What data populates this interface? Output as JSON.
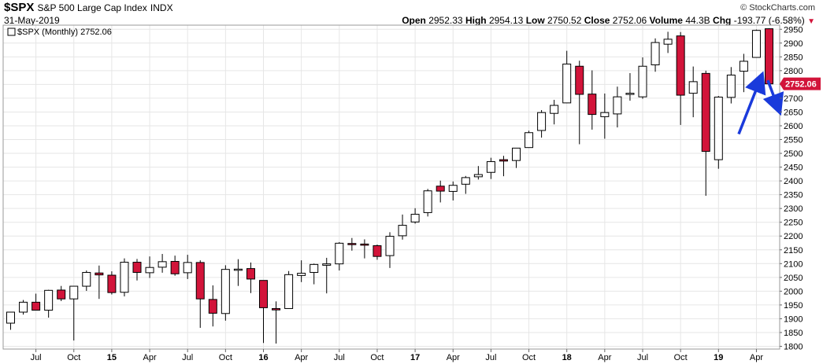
{
  "header": {
    "symbol": "$SPX",
    "name": "S&P 500 Large Cap Index",
    "exchange": "INDX",
    "date": "31-May-2019",
    "brand": "© StockCharts.com",
    "stats": {
      "open_label": "Open",
      "open": "2952.33",
      "high_label": "High",
      "high": "2954.13",
      "low_label": "Low",
      "low": "2750.52",
      "close_label": "Close",
      "close": "2752.06",
      "volume_label": "Volume",
      "volume": "44.3B",
      "chg_label": "Chg",
      "chg": "-193.77 (-6.58%)"
    }
  },
  "legend": {
    "label": "$SPX (Monthly) 2752.06"
  },
  "colors": {
    "up_fill": "#ffffff",
    "down_fill": "#d2143a",
    "outline": "#000000",
    "grid": "#e6e6e6",
    "arrow": "#1a3adb",
    "price_tag": "#d2143a"
  },
  "chart_data": {
    "type": "candlestick",
    "title": "$SPX (Monthly) 2752.06",
    "ylim": [
      1790,
      2965
    ],
    "y_ticks": [
      1800,
      1850,
      1900,
      1950,
      2000,
      2050,
      2100,
      2150,
      2200,
      2250,
      2300,
      2350,
      2400,
      2450,
      2500,
      2550,
      2600,
      2650,
      2700,
      2750,
      2800,
      2850,
      2900,
      2950
    ],
    "last_price": 2752.06,
    "x_ticks": [
      {
        "label": "Jul",
        "index": 2,
        "bold": false
      },
      {
        "label": "Oct",
        "index": 5,
        "bold": false
      },
      {
        "label": "15",
        "index": 8,
        "bold": true
      },
      {
        "label": "Apr",
        "index": 11,
        "bold": false
      },
      {
        "label": "Jul",
        "index": 14,
        "bold": false
      },
      {
        "label": "Oct",
        "index": 17,
        "bold": false
      },
      {
        "label": "16",
        "index": 20,
        "bold": true
      },
      {
        "label": "Apr",
        "index": 23,
        "bold": false
      },
      {
        "label": "Jul",
        "index": 26,
        "bold": false
      },
      {
        "label": "Oct",
        "index": 29,
        "bold": false
      },
      {
        "label": "17",
        "index": 32,
        "bold": true
      },
      {
        "label": "Apr",
        "index": 35,
        "bold": false
      },
      {
        "label": "Jul",
        "index": 38,
        "bold": false
      },
      {
        "label": "Oct",
        "index": 41,
        "bold": false
      },
      {
        "label": "18",
        "index": 44,
        "bold": true
      },
      {
        "label": "Apr",
        "index": 47,
        "bold": false
      },
      {
        "label": "Jul",
        "index": 50,
        "bold": false
      },
      {
        "label": "Oct",
        "index": 53,
        "bold": false
      },
      {
        "label": "19",
        "index": 56,
        "bold": true
      },
      {
        "label": "Apr",
        "index": 59,
        "bold": false
      }
    ],
    "candles": [
      {
        "m": "2014-05",
        "o": 1884,
        "h": 1924,
        "l": 1860,
        "c": 1924
      },
      {
        "m": "2014-06",
        "o": 1924,
        "h": 1968,
        "l": 1915,
        "c": 1960
      },
      {
        "m": "2014-07",
        "o": 1960,
        "h": 1991,
        "l": 1930,
        "c": 1931
      },
      {
        "m": "2014-08",
        "o": 1931,
        "h": 2005,
        "l": 1904,
        "c": 2003
      },
      {
        "m": "2014-09",
        "o": 2004,
        "h": 2019,
        "l": 1964,
        "c": 1972
      },
      {
        "m": "2014-10",
        "o": 1972,
        "h": 2018,
        "l": 1821,
        "c": 2018
      },
      {
        "m": "2014-11",
        "o": 2018,
        "h": 2075,
        "l": 2001,
        "c": 2068
      },
      {
        "m": "2014-12",
        "o": 2066,
        "h": 2093,
        "l": 1972,
        "c": 2059
      },
      {
        "m": "2015-01",
        "o": 2058,
        "h": 2072,
        "l": 1988,
        "c": 1995
      },
      {
        "m": "2015-02",
        "o": 1996,
        "h": 2119,
        "l": 1981,
        "c": 2105
      },
      {
        "m": "2015-03",
        "o": 2105,
        "h": 2117,
        "l": 2039,
        "c": 2068
      },
      {
        "m": "2015-04",
        "o": 2067,
        "h": 2126,
        "l": 2048,
        "c": 2086
      },
      {
        "m": "2015-05",
        "o": 2087,
        "h": 2135,
        "l": 2067,
        "c": 2107
      },
      {
        "m": "2015-06",
        "o": 2108,
        "h": 2129,
        "l": 2056,
        "c": 2063
      },
      {
        "m": "2015-07",
        "o": 2067,
        "h": 2132,
        "l": 2044,
        "c": 2104
      },
      {
        "m": "2015-08",
        "o": 2104,
        "h": 2112,
        "l": 1867,
        "c": 1972
      },
      {
        "m": "2015-09",
        "o": 1970,
        "h": 2021,
        "l": 1872,
        "c": 1920
      },
      {
        "m": "2015-10",
        "o": 1919,
        "h": 2094,
        "l": 1893,
        "c": 2079
      },
      {
        "m": "2015-11",
        "o": 2080,
        "h": 2116,
        "l": 2019,
        "c": 2080
      },
      {
        "m": "2015-12",
        "o": 2082,
        "h": 2104,
        "l": 1993,
        "c": 2044
      },
      {
        "m": "2016-01",
        "o": 2039,
        "h": 2039,
        "l": 1812,
        "c": 1940
      },
      {
        "m": "2016-02",
        "o": 1937,
        "h": 1963,
        "l": 1810,
        "c": 1932
      },
      {
        "m": "2016-03",
        "o": 1937,
        "h": 2073,
        "l": 1937,
        "c": 2060
      },
      {
        "m": "2016-04",
        "o": 2057,
        "h": 2112,
        "l": 2033,
        "c": 2065
      },
      {
        "m": "2016-05",
        "o": 2068,
        "h": 2100,
        "l": 2025,
        "c": 2097
      },
      {
        "m": "2016-06",
        "o": 2094,
        "h": 2121,
        "l": 1992,
        "c": 2099
      },
      {
        "m": "2016-07",
        "o": 2099,
        "h": 2178,
        "l": 2075,
        "c": 2174
      },
      {
        "m": "2016-08",
        "o": 2173,
        "h": 2193,
        "l": 2147,
        "c": 2171
      },
      {
        "m": "2016-09",
        "o": 2171,
        "h": 2188,
        "l": 2119,
        "c": 2168
      },
      {
        "m": "2016-10",
        "o": 2165,
        "h": 2169,
        "l": 2114,
        "c": 2126
      },
      {
        "m": "2016-11",
        "o": 2129,
        "h": 2214,
        "l": 2084,
        "c": 2199
      },
      {
        "m": "2016-12",
        "o": 2201,
        "h": 2278,
        "l": 2187,
        "c": 2239
      },
      {
        "m": "2017-01",
        "o": 2251,
        "h": 2301,
        "l": 2245,
        "c": 2279
      },
      {
        "m": "2017-02",
        "o": 2285,
        "h": 2371,
        "l": 2271,
        "c": 2364
      },
      {
        "m": "2017-03",
        "o": 2381,
        "h": 2401,
        "l": 2322,
        "c": 2363
      },
      {
        "m": "2017-04",
        "o": 2362,
        "h": 2398,
        "l": 2329,
        "c": 2384
      },
      {
        "m": "2017-05",
        "o": 2388,
        "h": 2418,
        "l": 2353,
        "c": 2412
      },
      {
        "m": "2017-06",
        "o": 2415,
        "h": 2454,
        "l": 2405,
        "c": 2423
      },
      {
        "m": "2017-07",
        "o": 2431,
        "h": 2484,
        "l": 2407,
        "c": 2470
      },
      {
        "m": "2017-08",
        "o": 2477,
        "h": 2491,
        "l": 2417,
        "c": 2472
      },
      {
        "m": "2017-09",
        "o": 2474,
        "h": 2519,
        "l": 2447,
        "c": 2519
      },
      {
        "m": "2017-10",
        "o": 2521,
        "h": 2582,
        "l": 2520,
        "c": 2575
      },
      {
        "m": "2017-11",
        "o": 2583,
        "h": 2657,
        "l": 2557,
        "c": 2648
      },
      {
        "m": "2017-12",
        "o": 2645,
        "h": 2694,
        "l": 2605,
        "c": 2674
      },
      {
        "m": "2018-01",
        "o": 2683,
        "h": 2872,
        "l": 2682,
        "c": 2824
      },
      {
        "m": "2018-02",
        "o": 2816,
        "h": 2836,
        "l": 2533,
        "c": 2714
      },
      {
        "m": "2018-03",
        "o": 2715,
        "h": 2801,
        "l": 2586,
        "c": 2641
      },
      {
        "m": "2018-04",
        "o": 2633,
        "h": 2717,
        "l": 2553,
        "c": 2648
      },
      {
        "m": "2018-05",
        "o": 2643,
        "h": 2742,
        "l": 2594,
        "c": 2705
      },
      {
        "m": "2018-06",
        "o": 2718,
        "h": 2791,
        "l": 2691,
        "c": 2718
      },
      {
        "m": "2018-07",
        "o": 2705,
        "h": 2848,
        "l": 2698,
        "c": 2816
      },
      {
        "m": "2018-08",
        "o": 2821,
        "h": 2917,
        "l": 2796,
        "c": 2902
      },
      {
        "m": "2018-09",
        "o": 2896,
        "h": 2941,
        "l": 2864,
        "c": 2914
      },
      {
        "m": "2018-10",
        "o": 2926,
        "h": 2940,
        "l": 2603,
        "c": 2711
      },
      {
        "m": "2018-11",
        "o": 2718,
        "h": 2815,
        "l": 2631,
        "c": 2760
      },
      {
        "m": "2018-12",
        "o": 2790,
        "h": 2800,
        "l": 2346,
        "c": 2507
      },
      {
        "m": "2019-01",
        "o": 2477,
        "h": 2708,
        "l": 2444,
        "c": 2704
      },
      {
        "m": "2019-02",
        "o": 2703,
        "h": 2813,
        "l": 2681,
        "c": 2784
      },
      {
        "m": "2019-03",
        "o": 2798,
        "h": 2861,
        "l": 2722,
        "c": 2834
      },
      {
        "m": "2019-04",
        "o": 2848,
        "h": 2949,
        "l": 2848,
        "c": 2946
      },
      {
        "m": "2019-05",
        "o": 2952,
        "h": 2954,
        "l": 2750,
        "c": 2752
      }
    ],
    "annotations": [
      {
        "type": "arrow",
        "direction": "up",
        "from": {
          "index": 57.6,
          "value": 2570
        },
        "to": {
          "index": 59.4,
          "value": 2780
        }
      },
      {
        "type": "arrow",
        "direction": "down",
        "from": {
          "index": 59.9,
          "value": 2765
        },
        "to": {
          "index": 60.8,
          "value": 2655
        }
      }
    ]
  }
}
